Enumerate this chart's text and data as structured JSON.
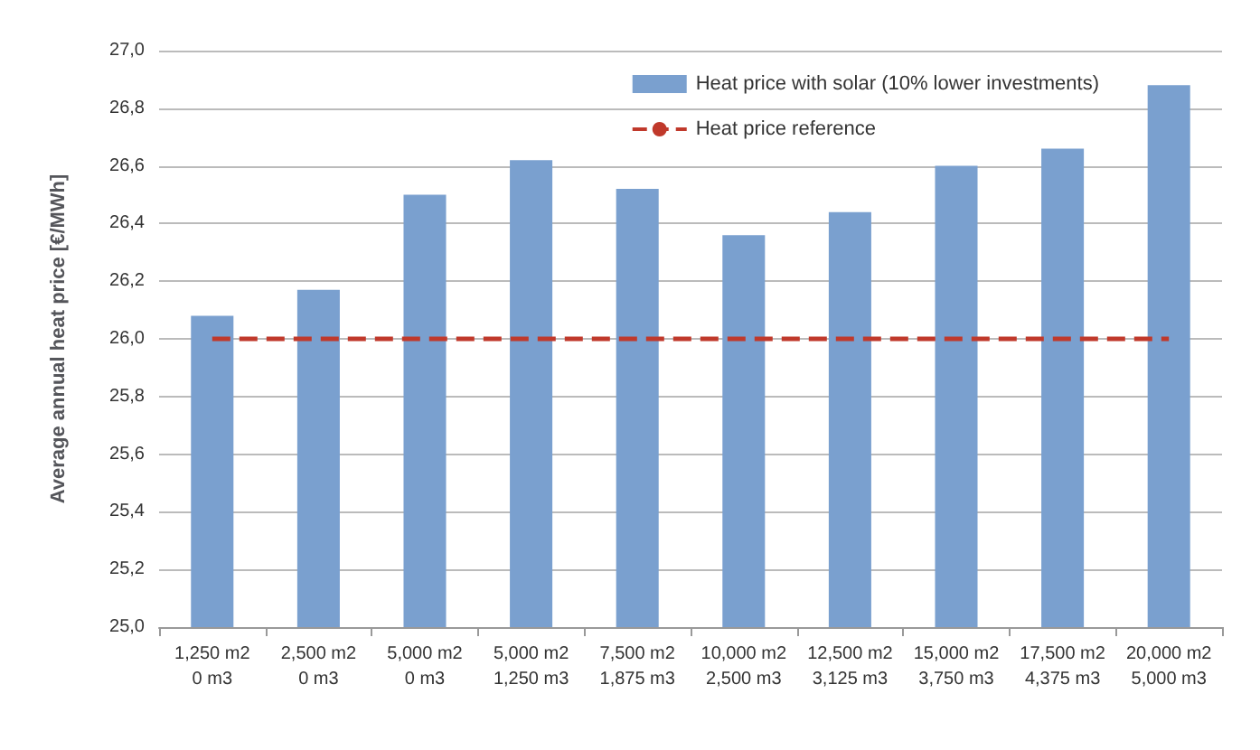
{
  "chart_data": {
    "type": "bar",
    "ylabel": "Average annual heat price [€/MWh]",
    "categories": [
      "1,250 m2\n0 m3",
      "2,500 m2\n0 m3",
      "5,000 m2\n0 m3",
      "5,000 m2\n1,250 m3",
      "7,500 m2\n1,875 m3",
      "10,000 m2\n2,500 m3",
      "12,500 m2\n3,125 m3",
      "15,000 m2\n3,750 m3",
      "17,500 m2\n4,375 m3",
      "20,000 m2\n5,000 m3"
    ],
    "series": [
      {
        "name": "Heat price with solar (10% lower investments)",
        "color": "#7aa0cf",
        "values": [
          26.08,
          26.17,
          26.5,
          26.62,
          26.52,
          26.36,
          26.44,
          26.6,
          26.66,
          26.88
        ]
      }
    ],
    "ref_lines": [
      {
        "axis": "y",
        "value": 26,
        "label": "Heat price reference",
        "color": "#c0392b",
        "line_style": "dashed"
      }
    ],
    "ylim": [
      25,
      27
    ],
    "yticks": [
      {
        "value": 25,
        "label": "25,0"
      },
      {
        "value": 25.2,
        "label": "25,2"
      },
      {
        "value": 25.4,
        "label": "25,4"
      },
      {
        "value": 25.6,
        "label": "25,6"
      },
      {
        "value": 25.8,
        "label": "25,8"
      },
      {
        "value": 26,
        "label": "26,0"
      },
      {
        "value": 26.2,
        "label": "26,2"
      },
      {
        "value": 26.4,
        "label": "26,4"
      },
      {
        "value": 26.6,
        "label": "26,6"
      },
      {
        "value": 26.8,
        "label": "26,8"
      },
      {
        "value": 27,
        "label": "27,0"
      }
    ],
    "grid": "y",
    "legend": "top right"
  }
}
